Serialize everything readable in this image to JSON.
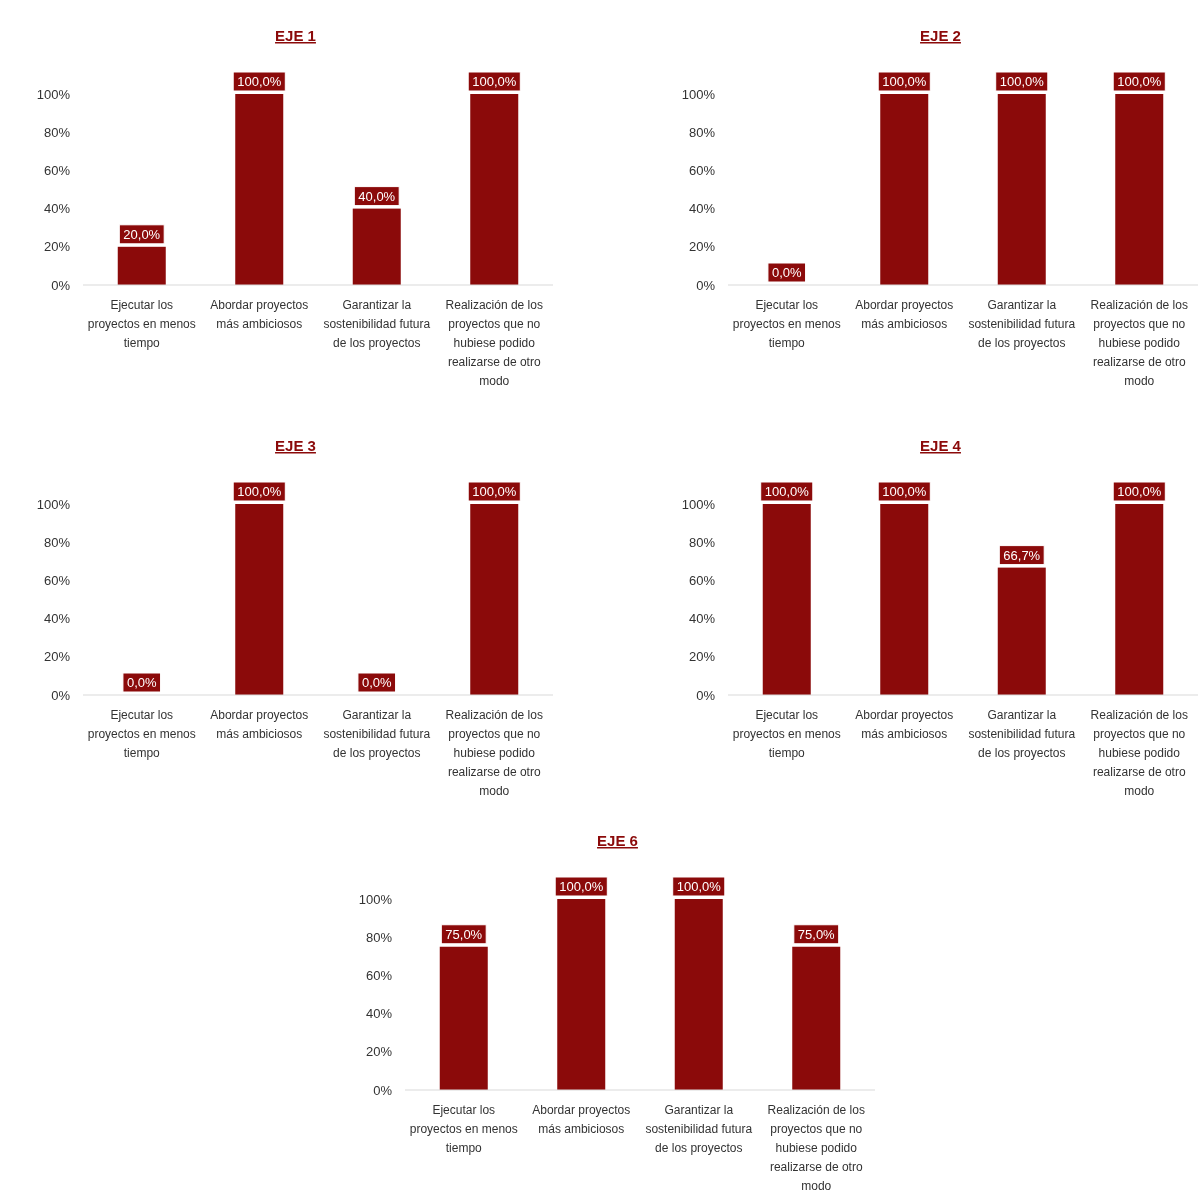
{
  "chart_data": [
    {
      "type": "bar",
      "title": "EJE 1",
      "categories": [
        "Ejecutar los proyectos en menos tiempo",
        "Abordar proyectos más ambiciosos",
        "Garantizar la sostenibilidad futura de los proyectos",
        "Realización de los proyectos que no hubiese podido realizarse de otro modo"
      ],
      "values": [
        20,
        100,
        40,
        100
      ],
      "value_labels": [
        "20,0%",
        "100,0%",
        "40,0%",
        "100,0%"
      ],
      "color": "#8b0a0a",
      "ylim": [
        0,
        100
      ],
      "yticks": [
        {
          "value": 0,
          "label": "0%"
        },
        {
          "value": 20,
          "label": "20%"
        },
        {
          "value": 40,
          "label": "40%"
        },
        {
          "value": 60,
          "label": "60%"
        },
        {
          "value": 80,
          "label": "80%"
        },
        {
          "value": 100,
          "label": "100%"
        }
      ],
      "grid": false
    },
    {
      "type": "bar",
      "title": "EJE 2",
      "categories": [
        "Ejecutar los proyectos en menos tiempo",
        "Abordar proyectos más ambiciosos",
        "Garantizar la sostenibilidad futura de los proyectos",
        "Realización de los proyectos que no hubiese podido realizarse de otro modo"
      ],
      "values": [
        0,
        100,
        100,
        100
      ],
      "value_labels": [
        "0,0%",
        "100,0%",
        "100,0%",
        "100,0%"
      ],
      "color": "#8b0a0a",
      "ylim": [
        0,
        100
      ],
      "yticks": [
        {
          "value": 0,
          "label": "0%"
        },
        {
          "value": 20,
          "label": "20%"
        },
        {
          "value": 40,
          "label": "40%"
        },
        {
          "value": 60,
          "label": "60%"
        },
        {
          "value": 80,
          "label": "80%"
        },
        {
          "value": 100,
          "label": "100%"
        }
      ],
      "grid": false
    },
    {
      "type": "bar",
      "title": "EJE 3",
      "categories": [
        "Ejecutar los proyectos en menos tiempo",
        "Abordar proyectos más ambiciosos",
        "Garantizar la sostenibilidad futura de los proyectos",
        "Realización de los proyectos que no hubiese podido realizarse de otro modo"
      ],
      "values": [
        0,
        100,
        0,
        100
      ],
      "value_labels": [
        "0,0%",
        "100,0%",
        "0,0%",
        "100,0%"
      ],
      "color": "#8b0a0a",
      "ylim": [
        0,
        100
      ],
      "yticks": [
        {
          "value": 0,
          "label": "0%"
        },
        {
          "value": 20,
          "label": "20%"
        },
        {
          "value": 40,
          "label": "40%"
        },
        {
          "value": 60,
          "label": "60%"
        },
        {
          "value": 80,
          "label": "80%"
        },
        {
          "value": 100,
          "label": "100%"
        }
      ],
      "grid": false
    },
    {
      "type": "bar",
      "title": "EJE 4",
      "categories": [
        "Ejecutar los proyectos en menos tiempo",
        "Abordar proyectos más ambiciosos",
        "Garantizar la sostenibilidad futura de los proyectos",
        "Realización de los proyectos que no hubiese podido realizarse de otro modo"
      ],
      "values": [
        100,
        100,
        66.7,
        100
      ],
      "value_labels": [
        "100,0%",
        "100,0%",
        "66,7%",
        "100,0%"
      ],
      "color": "#8b0a0a",
      "ylim": [
        0,
        100
      ],
      "yticks": [
        {
          "value": 0,
          "label": "0%"
        },
        {
          "value": 20,
          "label": "20%"
        },
        {
          "value": 40,
          "label": "40%"
        },
        {
          "value": 60,
          "label": "60%"
        },
        {
          "value": 80,
          "label": "80%"
        },
        {
          "value": 100,
          "label": "100%"
        }
      ],
      "grid": false
    },
    {
      "type": "bar",
      "title": "EJE 6",
      "categories": [
        "Ejecutar los proyectos en menos tiempo",
        "Abordar proyectos más ambiciosos",
        "Garantizar la sostenibilidad futura de los proyectos",
        "Realización de los proyectos que no hubiese podido realizarse de otro modo"
      ],
      "values": [
        75,
        100,
        100,
        75
      ],
      "value_labels": [
        "75,0%",
        "100,0%",
        "100,0%",
        "75,0%"
      ],
      "color": "#8b0a0a",
      "ylim": [
        0,
        100
      ],
      "yticks": [
        {
          "value": 0,
          "label": "0%"
        },
        {
          "value": 20,
          "label": "20%"
        },
        {
          "value": 40,
          "label": "40%"
        },
        {
          "value": 60,
          "label": "60%"
        },
        {
          "value": 80,
          "label": "80%"
        },
        {
          "value": 100,
          "label": "100%"
        }
      ],
      "grid": false
    }
  ]
}
